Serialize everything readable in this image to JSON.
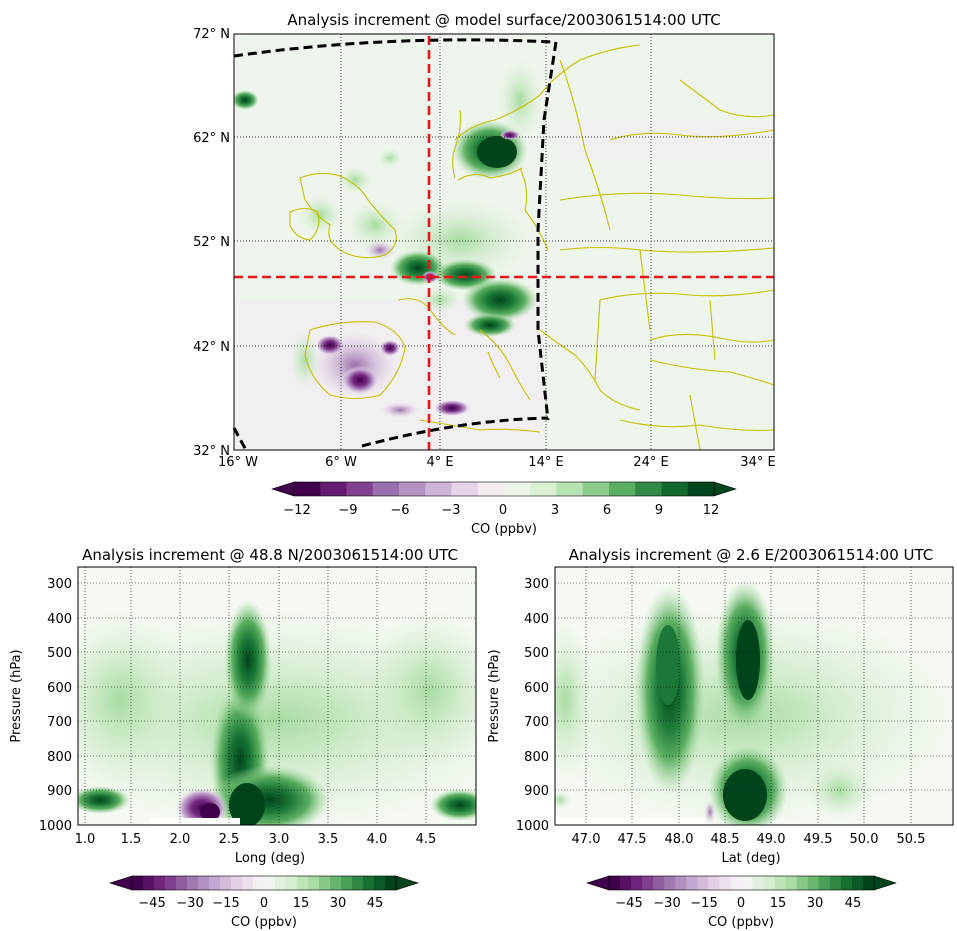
{
  "map_panel": {
    "title": "Analysis increment @ model surface/2003061514:00 UTC",
    "lat_ticks": [
      "72° N",
      "62° N",
      "52° N",
      "42° N",
      "32° N"
    ],
    "lon_ticks": [
      "16° W",
      "6° W",
      "4° E",
      "14° E",
      "24° E",
      "34° E"
    ],
    "colorbar": {
      "label": "CO (ppbv)",
      "ticks": [
        "−12",
        "−9",
        "−6",
        "−3",
        "0",
        "3",
        "6",
        "9",
        "12"
      ]
    },
    "crosshair_lat": "48.8 N",
    "crosshair_lon": "2.6 E",
    "colors": {
      "coastline": "#c8c000",
      "crosshair": "#e8141a",
      "domain_boundary": "#000000"
    }
  },
  "lon_section": {
    "title": "Analysis increment @ 48.8 N/2003061514:00 UTC",
    "ylabel": "Pressure (hPa)",
    "xlabel": "Long (deg)",
    "y_ticks": [
      "300",
      "400",
      "500",
      "600",
      "700",
      "800",
      "900",
      "1000"
    ],
    "x_ticks": [
      "1.0",
      "1.5",
      "2.0",
      "2.5",
      "3.0",
      "3.5",
      "4.0",
      "4.5"
    ],
    "colorbar": {
      "label": "CO (ppbv)",
      "ticks": [
        "−45",
        "−30",
        "−15",
        "0",
        "15",
        "30",
        "45"
      ]
    }
  },
  "lat_section": {
    "title": "Analysis increment @  2.6 E/2003061514:00 UTC",
    "ylabel": "Pressure (hPa)",
    "xlabel": "Lat (deg)",
    "y_ticks": [
      "300",
      "400",
      "500",
      "600",
      "700",
      "800",
      "900",
      "1000"
    ],
    "x_ticks": [
      "47.0",
      "47.5",
      "48.0",
      "48.5",
      "49.0",
      "49.5",
      "50.0",
      "50.5"
    ],
    "colorbar": {
      "label": "CO (ppbv)",
      "ticks": [
        "−45",
        "−30",
        "−15",
        "0",
        "15",
        "30",
        "45"
      ]
    }
  },
  "colormap": [
    "#40004b",
    "#762a83",
    "#9970ab",
    "#c2a5cf",
    "#e7d4e8",
    "#f7f7f7",
    "#d9f0d3",
    "#a6dba0",
    "#5aae61",
    "#1b7837",
    "#00441b"
  ]
}
